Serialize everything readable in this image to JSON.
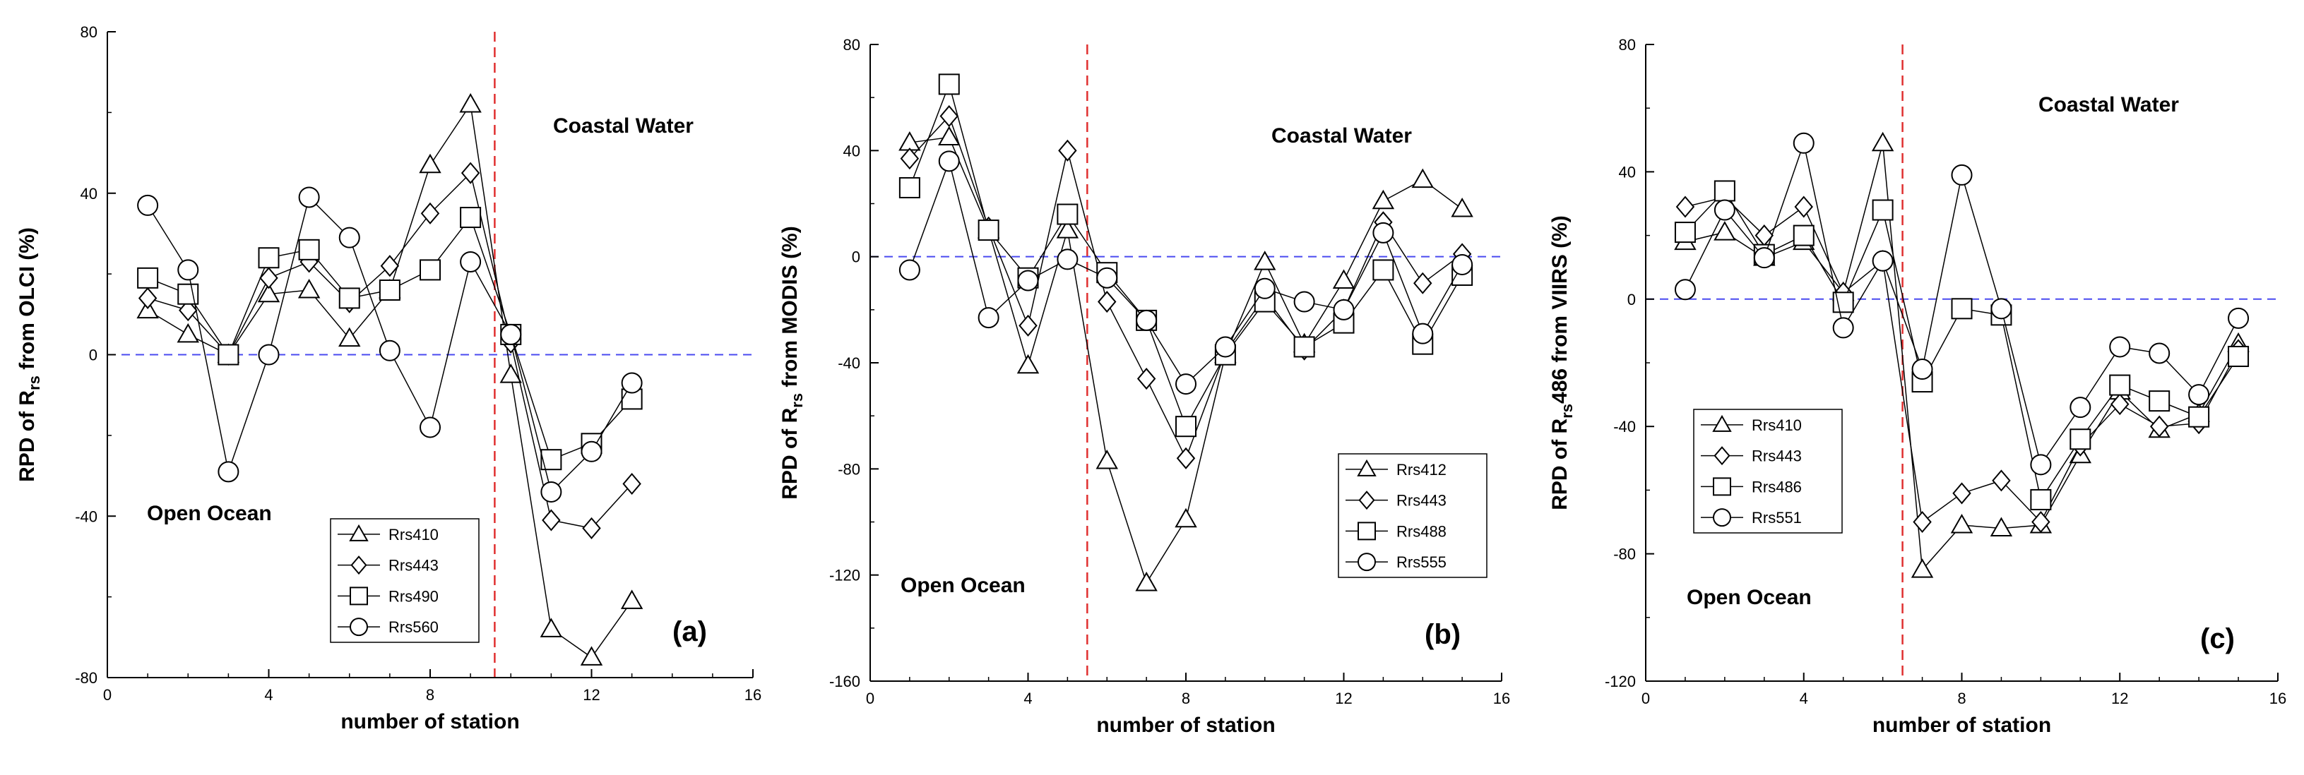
{
  "chart_data": [
    {
      "type": "line",
      "panel": "a",
      "panel_label": "(a)",
      "xlabel": "number of station",
      "ylabel_main": "RPD of R",
      "ylabel_sub": "rs",
      "ylabel_tail": " from OLCI (%)",
      "xlim": [
        0,
        16
      ],
      "ylim": [
        -80,
        80
      ],
      "xticks": [
        0,
        4,
        8,
        12,
        16
      ],
      "yticks": [
        -80,
        -40,
        0,
        40,
        80
      ],
      "divider_x": 9.6,
      "region_left": "Open Ocean",
      "region_right": "Coastal Water",
      "x": [
        1,
        2,
        3,
        4,
        5,
        6,
        7,
        8,
        9,
        10,
        11,
        12,
        13
      ],
      "series": [
        {
          "name": "Rrs410",
          "marker": "triangle",
          "values": [
            11,
            5,
            0,
            15,
            16,
            4,
            16,
            47,
            62,
            -5,
            -68,
            -75,
            -61
          ]
        },
        {
          "name": "Rrs443",
          "marker": "diamond",
          "values": [
            14,
            11,
            0,
            19,
            23,
            13,
            22,
            35,
            45,
            3,
            -41,
            -43,
            -32
          ]
        },
        {
          "name": "Rrs490",
          "marker": "square",
          "values": [
            19,
            15,
            0,
            24,
            26,
            14,
            16,
            21,
            34,
            5,
            -26,
            -22,
            -11
          ]
        },
        {
          "name": "Rrs560",
          "marker": "circle",
          "values": [
            37,
            21,
            -29,
            0,
            39,
            29,
            1,
            -18,
            23,
            5,
            -34,
            -24,
            -7
          ]
        }
      ]
    },
    {
      "type": "line",
      "panel": "b",
      "panel_label": "(b)",
      "xlabel": "number of station",
      "ylabel_main": "RPD of R",
      "ylabel_sub": "rs",
      "ylabel_tail": " from MODIS (%)",
      "xlim": [
        0,
        16
      ],
      "ylim": [
        -160,
        80
      ],
      "xticks": [
        0,
        4,
        8,
        12,
        16
      ],
      "yticks": [
        -160,
        -120,
        -80,
        -40,
        0,
        40,
        80
      ],
      "divider_x": 5.5,
      "region_left": "Open Ocean",
      "region_right": "Coastal Water",
      "x": [
        1,
        2,
        3,
        4,
        5,
        6,
        7,
        8,
        9,
        10,
        11,
        12,
        13,
        14,
        15
      ],
      "series": [
        {
          "name": "Rrs412",
          "marker": "triangle",
          "values": [
            43,
            45,
            10,
            -41,
            10,
            -77,
            -123,
            -99,
            -37,
            -2,
            -33,
            -9,
            21,
            29,
            18
          ]
        },
        {
          "name": "Rrs443",
          "marker": "diamond",
          "values": [
            37,
            53,
            11,
            -26,
            40,
            -17,
            -46,
            -76,
            -36,
            -15,
            -35,
            -20,
            13,
            -10,
            1
          ]
        },
        {
          "name": "Rrs488",
          "marker": "square",
          "values": [
            26,
            65,
            10,
            -8,
            16,
            -6,
            -24,
            -64,
            -37,
            -17,
            -34,
            -25,
            -5,
            -33,
            -7
          ]
        },
        {
          "name": "Rrs555",
          "marker": "circle",
          "values": [
            -5,
            36,
            -23,
            -9,
            -1,
            -8,
            -24,
            -48,
            -34,
            -12,
            -17,
            -20,
            9,
            -29,
            -3
          ]
        }
      ]
    },
    {
      "type": "line",
      "panel": "c",
      "panel_label": "(c)",
      "xlabel": "number of station",
      "ylabel_main": "RPD of R",
      "ylabel_sub": "rs",
      "ylabel_tail": "486 from VIIRS (%)",
      "xlim": [
        0,
        16
      ],
      "ylim": [
        -120,
        80
      ],
      "xticks": [
        0,
        4,
        8,
        12,
        16
      ],
      "yticks": [
        -120,
        -80,
        -40,
        0,
        40,
        80
      ],
      "divider_x": 6.5,
      "region_left": "Open Ocean",
      "region_right": "Coastal Water",
      "x": [
        1,
        2,
        3,
        4,
        5,
        6,
        7,
        8,
        9,
        10,
        11,
        12,
        13,
        14,
        15
      ],
      "series": [
        {
          "name": "Rrs410",
          "marker": "triangle",
          "values": [
            18,
            21,
            13,
            18,
            2,
            49,
            -85,
            -71,
            -72,
            -71,
            -49,
            -29,
            -41,
            -36,
            -14
          ]
        },
        {
          "name": "Rrs443",
          "marker": "diamond",
          "values": [
            29,
            32,
            20,
            29,
            2,
            12,
            -70,
            -61,
            -57,
            -70,
            -46,
            -33,
            -40,
            -39,
            -16
          ]
        },
        {
          "name": "Rrs486",
          "marker": "square",
          "values": [
            21,
            34,
            14,
            20,
            -1,
            28,
            -26,
            -3,
            -5,
            -63,
            -44,
            -27,
            -32,
            -37,
            -18
          ]
        },
        {
          "name": "Rrs551",
          "marker": "circle",
          "values": [
            3,
            28,
            13,
            49,
            -9,
            12,
            -22,
            39,
            -3,
            -52,
            -34,
            -15,
            -17,
            -30,
            -6
          ]
        }
      ]
    }
  ]
}
